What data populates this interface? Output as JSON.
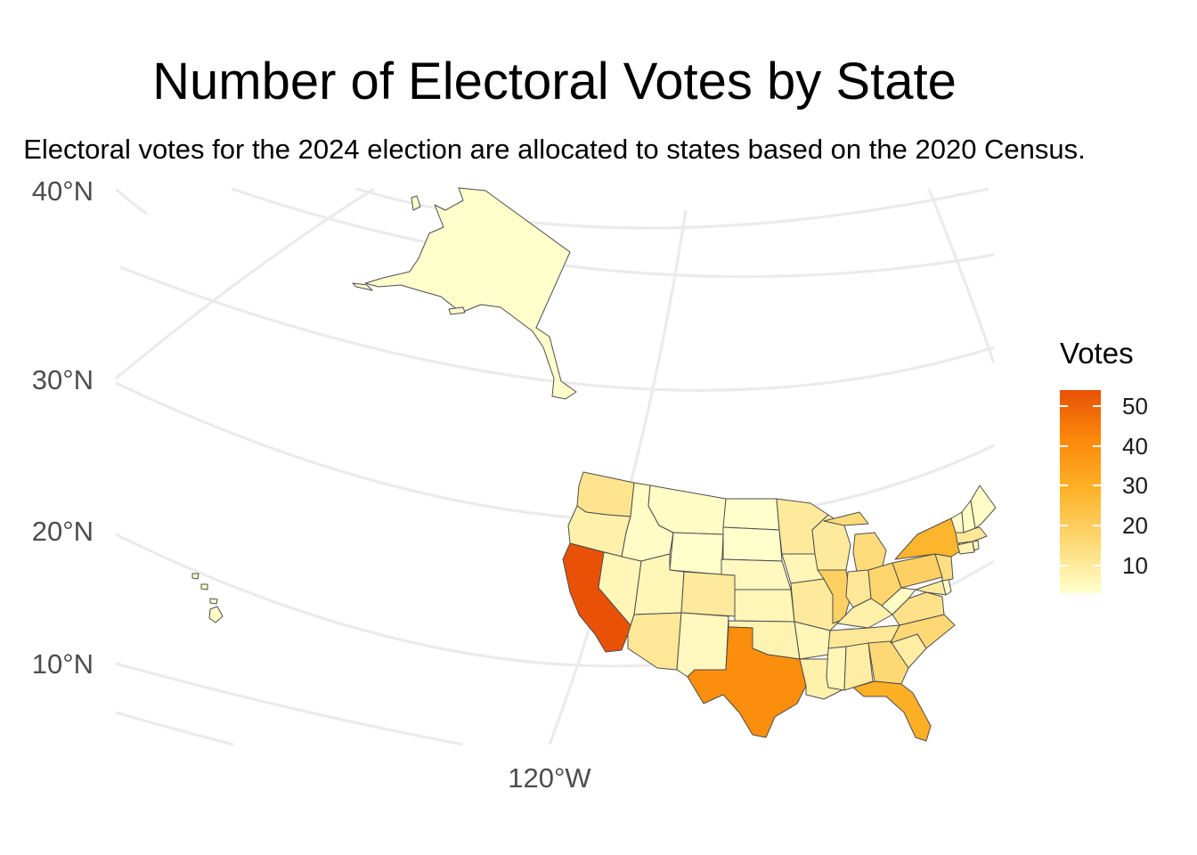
{
  "title": "Number of Electoral Votes by State",
  "subtitle": "Electoral votes for the 2024 election are allocated to states based on the 2020 Census.",
  "axes": {
    "lat_labels": [
      "40°N",
      "30°N",
      "20°N",
      "10°N"
    ],
    "lon_labels": [
      "120°W"
    ]
  },
  "legend": {
    "title": "Votes",
    "ticks": [
      "50",
      "40",
      "30",
      "20",
      "10"
    ],
    "range": [
      3,
      54
    ],
    "colors": [
      "#ffffcc",
      "#fed976",
      "#fdb42a",
      "#fc8a0a",
      "#e85106"
    ]
  },
  "colors": {
    "grid": "#ebebeb",
    "state_border": "#4d4d4d",
    "low": "#fff9c6",
    "high": "#e05206"
  },
  "chart_data": {
    "type": "choropleth",
    "title": "Number of Electoral Votes by State",
    "subtitle": "Electoral votes for the 2024 election are allocated to states based on the 2020 Census.",
    "legend_title": "Votes",
    "legend_position": "right",
    "grid": true,
    "states": [
      {
        "state": "AL",
        "votes": 9
      },
      {
        "state": "AK",
        "votes": 3
      },
      {
        "state": "AZ",
        "votes": 11
      },
      {
        "state": "AR",
        "votes": 6
      },
      {
        "state": "CA",
        "votes": 54
      },
      {
        "state": "CO",
        "votes": 10
      },
      {
        "state": "CT",
        "votes": 7
      },
      {
        "state": "DE",
        "votes": 3
      },
      {
        "state": "DC",
        "votes": 3
      },
      {
        "state": "FL",
        "votes": 30
      },
      {
        "state": "GA",
        "votes": 16
      },
      {
        "state": "HI",
        "votes": 4
      },
      {
        "state": "ID",
        "votes": 4
      },
      {
        "state": "IL",
        "votes": 19
      },
      {
        "state": "IN",
        "votes": 11
      },
      {
        "state": "IA",
        "votes": 6
      },
      {
        "state": "KS",
        "votes": 6
      },
      {
        "state": "KY",
        "votes": 8
      },
      {
        "state": "LA",
        "votes": 8
      },
      {
        "state": "ME",
        "votes": 4
      },
      {
        "state": "MD",
        "votes": 10
      },
      {
        "state": "MA",
        "votes": 11
      },
      {
        "state": "MI",
        "votes": 15
      },
      {
        "state": "MN",
        "votes": 10
      },
      {
        "state": "MS",
        "votes": 6
      },
      {
        "state": "MO",
        "votes": 10
      },
      {
        "state": "MT",
        "votes": 4
      },
      {
        "state": "NE",
        "votes": 5
      },
      {
        "state": "NV",
        "votes": 6
      },
      {
        "state": "NH",
        "votes": 4
      },
      {
        "state": "NJ",
        "votes": 14
      },
      {
        "state": "NM",
        "votes": 5
      },
      {
        "state": "NY",
        "votes": 28
      },
      {
        "state": "NC",
        "votes": 16
      },
      {
        "state": "ND",
        "votes": 3
      },
      {
        "state": "OH",
        "votes": 17
      },
      {
        "state": "OK",
        "votes": 7
      },
      {
        "state": "OR",
        "votes": 8
      },
      {
        "state": "PA",
        "votes": 19
      },
      {
        "state": "RI",
        "votes": 4
      },
      {
        "state": "SC",
        "votes": 9
      },
      {
        "state": "SD",
        "votes": 3
      },
      {
        "state": "TN",
        "votes": 11
      },
      {
        "state": "TX",
        "votes": 40
      },
      {
        "state": "UT",
        "votes": 6
      },
      {
        "state": "VT",
        "votes": 3
      },
      {
        "state": "VA",
        "votes": 13
      },
      {
        "state": "WA",
        "votes": 12
      },
      {
        "state": "WV",
        "votes": 4
      },
      {
        "state": "WI",
        "votes": 10
      },
      {
        "state": "WY",
        "votes": 3
      }
    ]
  }
}
